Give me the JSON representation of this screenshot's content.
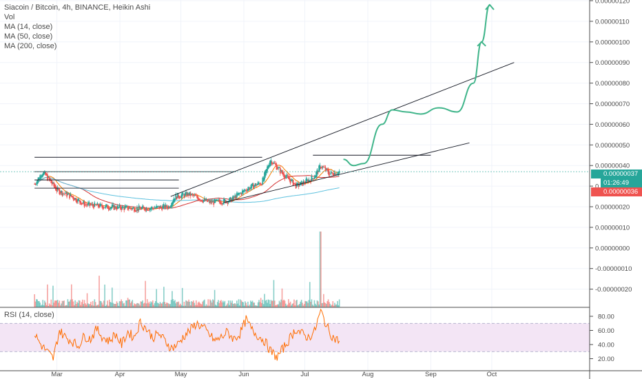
{
  "legend": {
    "title": "Siacoin / Bitcoin, 4h, BINANCE, Heikin Ashi",
    "vol": "Vol",
    "ma14": "MA (14, close)",
    "ma50": "MA (50, close)",
    "ma200": "MA (200, close)",
    "rsi": "RSI (14, close)"
  },
  "badges": {
    "price_top": "0.00000037",
    "countdown": "01:26:49",
    "price_bottom": "0.00000036"
  },
  "colors": {
    "up": "#26a69a",
    "down": "#ef5350",
    "ma14": "#f57c00",
    "ma50": "#d32f2f",
    "ma200": "#5bc0de",
    "projection": "#3eb489",
    "rsi_line": "#ff6d00",
    "rsi_band": "#f3e5f5",
    "trendline": "#131722",
    "badge_teal": "#26a69a",
    "badge_red": "#ef5350"
  },
  "chart_data": [
    {
      "type": "candlestick",
      "title": "Siacoin / Bitcoin, 4h, BINANCE, Heikin Ashi",
      "x_ticks": [
        "Mar",
        "Apr",
        "May",
        "Jun",
        "Jul",
        "Aug",
        "Sep",
        "Oct"
      ],
      "y_ticks": [
        "0.00000120",
        "0.00000110",
        "0.00000100",
        "0.00000090",
        "0.00000080",
        "0.00000070",
        "0.00000060",
        "0.00000050",
        "0.00000040",
        "0.00000030",
        "0.00000020",
        "0.00000010",
        "0.00000000",
        "-0.00000010",
        "-0.00000020"
      ],
      "ylim": [
        -2.4e-07,
        1.23e-06
      ],
      "price_path": [
        {
          "date": "2019-02-18",
          "price": 3.1e-07
        },
        {
          "date": "2019-02-22",
          "price": 3.7e-07
        },
        {
          "date": "2019-03-01",
          "price": 2.8e-07
        },
        {
          "date": "2019-03-08",
          "price": 2.5e-07
        },
        {
          "date": "2019-03-15",
          "price": 2.1e-07
        },
        {
          "date": "2019-03-25",
          "price": 2e-07
        },
        {
          "date": "2019-04-10",
          "price": 1.9e-07
        },
        {
          "date": "2019-04-25",
          "price": 2e-07
        },
        {
          "date": "2019-04-28",
          "price": 2.5e-07
        },
        {
          "date": "2019-05-05",
          "price": 2.6e-07
        },
        {
          "date": "2019-05-15",
          "price": 2.2e-07
        },
        {
          "date": "2019-05-25",
          "price": 2.3e-07
        },
        {
          "date": "2019-06-03",
          "price": 2.9e-07
        },
        {
          "date": "2019-06-10",
          "price": 3.2e-07
        },
        {
          "date": "2019-06-14",
          "price": 4.3e-07
        },
        {
          "date": "2019-06-20",
          "price": 3.6e-07
        },
        {
          "date": "2019-06-27",
          "price": 3e-07
        },
        {
          "date": "2019-07-05",
          "price": 3.4e-07
        },
        {
          "date": "2019-07-09",
          "price": 4e-07
        },
        {
          "date": "2019-07-13",
          "price": 3.6e-07
        },
        {
          "date": "2019-07-18",
          "price": 3.7e-07
        }
      ],
      "projection_path": [
        {
          "date": "2019-07-20",
          "price": 4.3e-07
        },
        {
          "date": "2019-07-25",
          "price": 4e-07
        },
        {
          "date": "2019-07-30",
          "price": 4.1e-07
        },
        {
          "date": "2019-08-08",
          "price": 6e-07
        },
        {
          "date": "2019-08-13",
          "price": 6.7e-07
        },
        {
          "date": "2019-08-20",
          "price": 6.6e-07
        },
        {
          "date": "2019-08-27",
          "price": 6.5e-07
        },
        {
          "date": "2019-09-05",
          "price": 6.8e-07
        },
        {
          "date": "2019-09-14",
          "price": 6.6e-07
        },
        {
          "date": "2019-09-22",
          "price": 8e-07
        },
        {
          "date": "2019-09-26",
          "price": 1e-06
        },
        {
          "date": "2019-09-30",
          "price": 1.18e-06
        }
      ],
      "horizontal_lines": [
        {
          "price": 4.4e-07,
          "from": "2019-02-18",
          "to": "2019-06-10"
        },
        {
          "price": 3.7e-07,
          "from": "2019-02-18",
          "to": "2019-05-28"
        },
        {
          "price": 3.3e-07,
          "from": "2019-02-18",
          "to": "2019-04-30"
        },
        {
          "price": 2.9e-07,
          "from": "2019-02-18",
          "to": "2019-04-30"
        },
        {
          "price": 4.5e-07,
          "from": "2019-07-05",
          "to": "2019-09-01"
        }
      ],
      "trend_lines": [
        {
          "from": {
            "date": "2019-04-26",
            "price": 2.5e-07
          },
          "to": {
            "date": "2019-10-12",
            "price": 9e-07
          }
        },
        {
          "from": {
            "date": "2019-05-22",
            "price": 2.2e-07
          },
          "to": {
            "date": "2019-09-20",
            "price": 5.1e-07
          }
        }
      ],
      "current_price": 3.7e-07
    },
    {
      "type": "line",
      "title": "RSI (14, close)",
      "y_ticks": [
        "80.00",
        "60.00",
        "40.00",
        "20.00"
      ],
      "ylim": [
        14,
        93
      ],
      "band": [
        30,
        70
      ],
      "values_sample": [
        55,
        40,
        30,
        20,
        60,
        50,
        45,
        38,
        52,
        48,
        62,
        50,
        45,
        55,
        40,
        58,
        50,
        72,
        62,
        50,
        55,
        45,
        35,
        40,
        52,
        60,
        70,
        65,
        55,
        45,
        50,
        58,
        48,
        55,
        75,
        60,
        52,
        45,
        30,
        22,
        35,
        48,
        62,
        55,
        50,
        58,
        88,
        65,
        50,
        45
      ]
    }
  ]
}
